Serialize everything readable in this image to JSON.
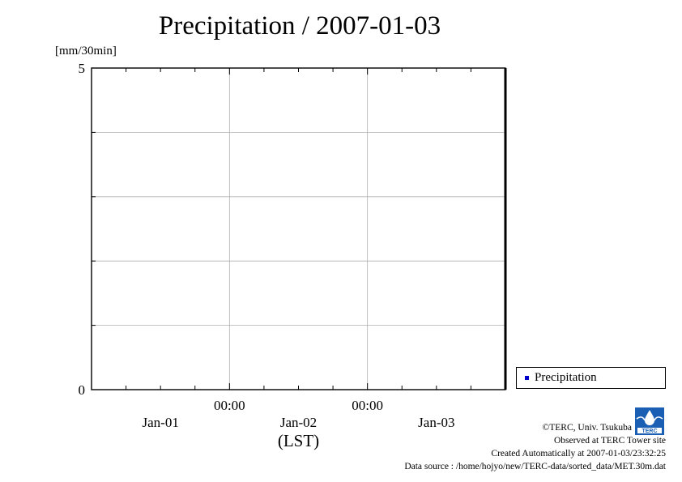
{
  "title": "Precipitation / 2007-01-03",
  "chart_data": {
    "type": "line",
    "title": "Precipitation / 2007-01-03",
    "ylabel": "[mm/30min]",
    "xlabel": "(LST)",
    "ylim": [
      0,
      5
    ],
    "yticks": [
      "0",
      "5"
    ],
    "x_time_ticks": [
      "00:00",
      "00:00"
    ],
    "x_date_ticks": [
      "Jan-01",
      "Jan-02",
      "Jan-03"
    ],
    "grid": true,
    "legend_position": "bottom-right",
    "series": [
      {
        "name": "Precipitation",
        "color": "#0000cc",
        "values": []
      }
    ]
  },
  "legend": {
    "label": "Precipitation",
    "color": "#0000cc"
  },
  "credits": {
    "line1": "©TERC, Univ. Tsukuba",
    "line2": "Observed at TERC Tower site",
    "line3": "Created Automatically at 2007-01-03/23:32:25",
    "line4": "Data source : /home/hojyo/new/TERC-data/sorted_data/MET.30m.dat"
  },
  "logo": {
    "text": "TERC",
    "color": "#1a5fb4"
  }
}
